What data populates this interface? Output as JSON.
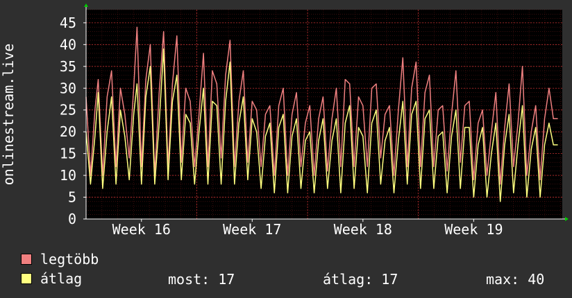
{
  "chart_data": {
    "type": "line",
    "ylabel": "onlinestream.live",
    "ylim": [
      0,
      48
    ],
    "yticks": [
      0,
      5,
      10,
      15,
      20,
      25,
      30,
      35,
      40,
      45
    ],
    "xlim": [
      0,
      4.3
    ],
    "xticks": [
      {
        "label": "Week 16",
        "x": 0.5
      },
      {
        "label": "Week 17",
        "x": 1.5
      },
      {
        "label": "Week 18",
        "x": 2.5
      },
      {
        "label": "Week 19",
        "x": 3.5
      }
    ],
    "grid": true,
    "series": [
      {
        "name": "legtöbb",
        "color": "#f08080",
        "x": [
          0.0,
          0.04,
          0.08,
          0.11,
          0.15,
          0.19,
          0.23,
          0.27,
          0.31,
          0.35,
          0.39,
          0.43,
          0.46,
          0.5,
          0.54,
          0.58,
          0.62,
          0.66,
          0.7,
          0.74,
          0.78,
          0.82,
          0.86,
          0.9,
          0.94,
          0.98,
          1.02,
          1.06,
          1.1,
          1.14,
          1.18,
          1.22,
          1.26,
          1.3,
          1.34,
          1.38,
          1.42,
          1.46,
          1.5,
          1.54,
          1.58,
          1.62,
          1.66,
          1.7,
          1.74,
          1.78,
          1.82,
          1.86,
          1.9,
          1.94,
          1.98,
          2.02,
          2.06,
          2.1,
          2.14,
          2.18,
          2.22,
          2.26,
          2.3,
          2.34,
          2.38,
          2.42,
          2.46,
          2.5,
          2.54,
          2.58,
          2.62,
          2.66,
          2.7,
          2.74,
          2.78,
          2.82,
          2.86,
          2.9,
          2.94,
          2.98,
          3.02,
          3.06,
          3.1,
          3.14,
          3.18,
          3.22,
          3.26,
          3.3,
          3.34,
          3.38,
          3.42,
          3.46,
          3.5,
          3.54,
          3.58,
          3.62,
          3.66,
          3.7,
          3.74,
          3.78,
          3.82,
          3.86,
          3.9,
          3.94,
          3.98,
          4.02,
          4.06,
          4.1,
          4.14,
          4.18,
          4.22,
          4.26
        ],
        "values": [
          28,
          10,
          25,
          32,
          10,
          28,
          34,
          12,
          30,
          24,
          14,
          30,
          44,
          12,
          32,
          40,
          10,
          29,
          43,
          12,
          31,
          42,
          13,
          30,
          27,
          12,
          24,
          38,
          12,
          34,
          31,
          14,
          33,
          41,
          12,
          27,
          34,
          13,
          27,
          25,
          12,
          24,
          26,
          10,
          26,
          30,
          10,
          24,
          29,
          12,
          22,
          26,
          10,
          23,
          28,
          11,
          23,
          30,
          12,
          32,
          31,
          12,
          28,
          26,
          12,
          30,
          31,
          14,
          24,
          26,
          10,
          25,
          37,
          12,
          30,
          36,
          12,
          29,
          33,
          12,
          25,
          26,
          11,
          24,
          34,
          13,
          26,
          27,
          9,
          22,
          25,
          10,
          20,
          29,
          8,
          21,
          31,
          12,
          22,
          35,
          10,
          20,
          26,
          9,
          23,
          30,
          23,
          23
        ]
      },
      {
        "name": "átlag",
        "color": "#ffff80",
        "x": [
          0.0,
          0.04,
          0.08,
          0.11,
          0.15,
          0.19,
          0.23,
          0.27,
          0.31,
          0.35,
          0.39,
          0.43,
          0.46,
          0.5,
          0.54,
          0.58,
          0.62,
          0.66,
          0.7,
          0.74,
          0.78,
          0.82,
          0.86,
          0.9,
          0.94,
          0.98,
          1.02,
          1.06,
          1.1,
          1.14,
          1.18,
          1.22,
          1.26,
          1.3,
          1.34,
          1.38,
          1.42,
          1.46,
          1.5,
          1.54,
          1.58,
          1.62,
          1.66,
          1.7,
          1.74,
          1.78,
          1.82,
          1.86,
          1.9,
          1.94,
          1.98,
          2.02,
          2.06,
          2.1,
          2.14,
          2.18,
          2.22,
          2.26,
          2.3,
          2.34,
          2.38,
          2.42,
          2.46,
          2.5,
          2.54,
          2.58,
          2.62,
          2.66,
          2.7,
          2.74,
          2.78,
          2.82,
          2.86,
          2.9,
          2.94,
          2.98,
          3.02,
          3.06,
          3.1,
          3.14,
          3.18,
          3.22,
          3.26,
          3.3,
          3.34,
          3.38,
          3.42,
          3.46,
          3.5,
          3.54,
          3.58,
          3.62,
          3.66,
          3.7,
          3.74,
          3.78,
          3.82,
          3.86,
          3.9,
          3.94,
          3.98,
          4.02,
          4.06,
          4.1,
          4.14,
          4.18,
          4.22,
          4.26
        ],
        "values": [
          20,
          8,
          19,
          29,
          7,
          20,
          28,
          8,
          25,
          19,
          9,
          24,
          31,
          8,
          28,
          35,
          8,
          22,
          39,
          9,
          27,
          33,
          9,
          24,
          22,
          8,
          20,
          30,
          8,
          27,
          26,
          8,
          27,
          36,
          8,
          22,
          28,
          9,
          23,
          20,
          7,
          19,
          22,
          6,
          21,
          24,
          6,
          19,
          23,
          7,
          18,
          20,
          6,
          18,
          23,
          7,
          18,
          23,
          6,
          22,
          26,
          7,
          21,
          19,
          6,
          22,
          25,
          8,
          18,
          21,
          6,
          18,
          27,
          8,
          24,
          27,
          7,
          23,
          25,
          7,
          19,
          20,
          6,
          19,
          25,
          7,
          21,
          21,
          5,
          17,
          21,
          5,
          15,
          22,
          4,
          17,
          24,
          6,
          17,
          26,
          5,
          16,
          21,
          5,
          17,
          22,
          17,
          17
        ]
      }
    ]
  },
  "legend": [
    {
      "label": "legtöbb",
      "color": "#f08080"
    },
    {
      "label": "átlag",
      "color": "#ffff80"
    }
  ],
  "stats": {
    "most": "most: 17",
    "atlag": "átlag: 17",
    "max": "max: 40"
  },
  "colors": {
    "background": "#2f2f2f",
    "plot_background": "#000000",
    "grid": "#8a2020",
    "axis": "#ffffff"
  }
}
